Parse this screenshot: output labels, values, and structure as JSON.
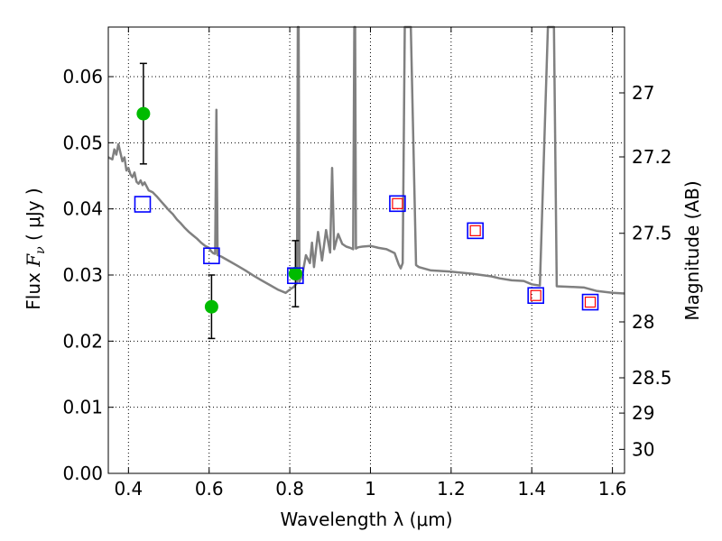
{
  "chart_data": {
    "type": "scatter",
    "xlabel": "Wavelength  λ (μm)",
    "ylabel_prefix": "Flux  ",
    "ylabel_math": "F",
    "ylabel_math_sub": "ν",
    "ylabel_suffix": "  ( μJy )",
    "y2label": "Magnitude (AB)",
    "xlim": [
      0.35,
      1.63
    ],
    "ylim": [
      0.0,
      0.0675
    ],
    "x_ticks": [
      0.4,
      0.6,
      0.8,
      1.0,
      1.2,
      1.4,
      1.6
    ],
    "x_tick_labels": [
      "0.4",
      "0.6",
      "0.8",
      "1",
      "1.2",
      "1.4",
      "1.6"
    ],
    "y_ticks": [
      0.0,
      0.01,
      0.02,
      0.03,
      0.04,
      0.05,
      0.06
    ],
    "y_tick_labels": [
      "0.00",
      "0.01",
      "0.02",
      "0.03",
      "0.04",
      "0.05",
      "0.06"
    ],
    "y2_ticks": [
      27,
      27.2,
      27.5,
      28,
      28.5,
      29,
      30
    ],
    "y2_tick_labels": [
      "27",
      "27.2",
      "27.5",
      "28",
      "28.5",
      "29",
      "30"
    ],
    "grid": true,
    "colors": {
      "model": "#808080",
      "observed": "#00bb00",
      "errorbar": "#000000",
      "model_phot": "#0000ff",
      "model_phot_inner": "#ff0000"
    },
    "series": [
      {
        "kind": "model-spectrum",
        "points": [
          [
            0.35,
            0.0478
          ],
          [
            0.36,
            0.0475
          ],
          [
            0.365,
            0.049
          ],
          [
            0.37,
            0.0482
          ],
          [
            0.375,
            0.0498
          ],
          [
            0.38,
            0.0485
          ],
          [
            0.385,
            0.0472
          ],
          [
            0.39,
            0.0478
          ],
          [
            0.395,
            0.0458
          ],
          [
            0.4,
            0.0462
          ],
          [
            0.405,
            0.0452
          ],
          [
            0.41,
            0.0448
          ],
          [
            0.415,
            0.0455
          ],
          [
            0.42,
            0.0441
          ],
          [
            0.425,
            0.0438
          ],
          [
            0.43,
            0.0443
          ],
          [
            0.435,
            0.0436
          ],
          [
            0.44,
            0.044
          ],
          [
            0.45,
            0.0428
          ],
          [
            0.46,
            0.0425
          ],
          [
            0.47,
            0.0419
          ],
          [
            0.48,
            0.0412
          ],
          [
            0.49,
            0.0405
          ],
          [
            0.5,
            0.0398
          ],
          [
            0.51,
            0.0392
          ],
          [
            0.52,
            0.0384
          ],
          [
            0.53,
            0.0378
          ],
          [
            0.54,
            0.0371
          ],
          [
            0.55,
            0.0365
          ],
          [
            0.56,
            0.036
          ],
          [
            0.57,
            0.0355
          ],
          [
            0.58,
            0.0349
          ],
          [
            0.59,
            0.0344
          ],
          [
            0.6,
            0.0341
          ],
          [
            0.605,
            0.0336
          ],
          [
            0.61,
            0.0333
          ],
          [
            0.615,
            0.0332
          ],
          [
            0.618,
            0.055
          ],
          [
            0.621,
            0.033
          ],
          [
            0.63,
            0.0328
          ],
          [
            0.65,
            0.0321
          ],
          [
            0.67,
            0.0314
          ],
          [
            0.69,
            0.0307
          ],
          [
            0.71,
            0.0299
          ],
          [
            0.73,
            0.0292
          ],
          [
            0.75,
            0.0285
          ],
          [
            0.77,
            0.0278
          ],
          [
            0.79,
            0.0273
          ],
          [
            0.8,
            0.0278
          ],
          [
            0.81,
            0.0282
          ],
          [
            0.818,
            0.0288
          ],
          [
            0.82,
            0.068
          ],
          [
            0.822,
            0.068
          ],
          [
            0.824,
            0.029
          ],
          [
            0.83,
            0.0297
          ],
          [
            0.84,
            0.033
          ],
          [
            0.85,
            0.0318
          ],
          [
            0.855,
            0.0349
          ],
          [
            0.86,
            0.0312
          ],
          [
            0.87,
            0.0365
          ],
          [
            0.88,
            0.0322
          ],
          [
            0.89,
            0.0368
          ],
          [
            0.9,
            0.0334
          ],
          [
            0.905,
            0.0462
          ],
          [
            0.91,
            0.0339
          ],
          [
            0.92,
            0.0362
          ],
          [
            0.93,
            0.0347
          ],
          [
            0.94,
            0.0343
          ],
          [
            0.95,
            0.0341
          ],
          [
            0.957,
            0.0339
          ],
          [
            0.96,
            0.068
          ],
          [
            0.962,
            0.068
          ],
          [
            0.964,
            0.034
          ],
          [
            0.97,
            0.0342
          ],
          [
            0.98,
            0.0343
          ],
          [
            1.0,
            0.0344
          ],
          [
            1.02,
            0.0341
          ],
          [
            1.04,
            0.0339
          ],
          [
            1.06,
            0.0333
          ],
          [
            1.07,
            0.0316
          ],
          [
            1.075,
            0.031
          ],
          [
            1.08,
            0.0318
          ],
          [
            1.085,
            0.068
          ],
          [
            1.1,
            0.068
          ],
          [
            1.113,
            0.0315
          ],
          [
            1.12,
            0.0312
          ],
          [
            1.15,
            0.0307
          ],
          [
            1.2,
            0.0305
          ],
          [
            1.25,
            0.0302
          ],
          [
            1.3,
            0.0298
          ],
          [
            1.32,
            0.0295
          ],
          [
            1.35,
            0.0292
          ],
          [
            1.38,
            0.0291
          ],
          [
            1.4,
            0.0286
          ],
          [
            1.42,
            0.0284
          ],
          [
            1.44,
            0.068
          ],
          [
            1.455,
            0.068
          ],
          [
            1.462,
            0.0283
          ],
          [
            1.5,
            0.0282
          ],
          [
            1.53,
            0.0281
          ],
          [
            1.56,
            0.0276
          ],
          [
            1.6,
            0.0273
          ],
          [
            1.63,
            0.0272
          ]
        ]
      },
      {
        "kind": "observed-photometry",
        "points": [
          {
            "x": 0.437,
            "y": 0.0544,
            "err": 0.0076
          },
          {
            "x": 0.606,
            "y": 0.0252,
            "err": 0.0048
          },
          {
            "x": 0.814,
            "y": 0.0302,
            "err": 0.005
          }
        ]
      },
      {
        "kind": "model-photometry",
        "points": [
          {
            "x": 0.435,
            "y": 0.0407,
            "inner": false
          },
          {
            "x": 0.606,
            "y": 0.0329,
            "inner": false
          },
          {
            "x": 0.814,
            "y": 0.0299,
            "inner": false
          },
          {
            "x": 1.067,
            "y": 0.0408,
            "inner": true
          },
          {
            "x": 1.26,
            "y": 0.0367,
            "inner": true
          },
          {
            "x": 1.41,
            "y": 0.0269,
            "inner": true
          },
          {
            "x": 1.545,
            "y": 0.0259,
            "inner": true
          }
        ]
      }
    ]
  }
}
